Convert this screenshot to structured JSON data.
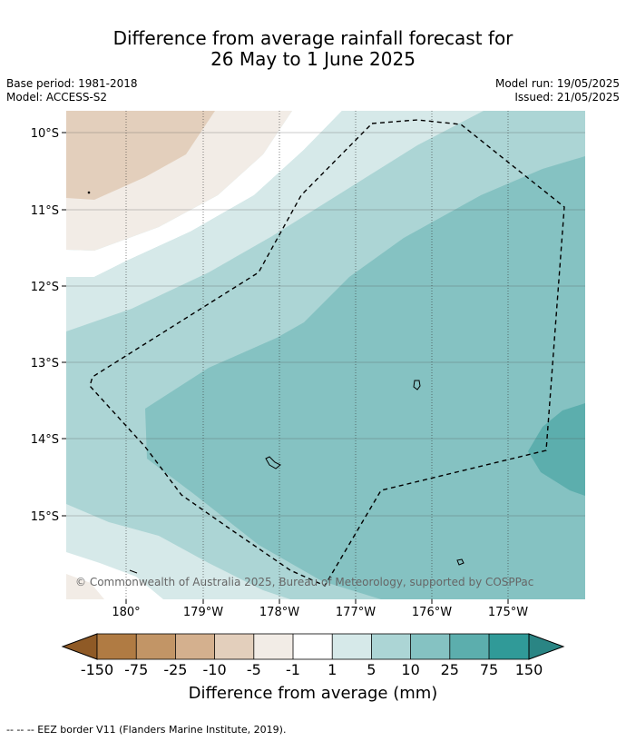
{
  "title_line1": "Difference from average rainfall forecast for",
  "title_line2": "26 May to 1 June 2025",
  "base_period": "Base period: 1981-2018",
  "model": "Model: ACCESS-S2",
  "model_run": "Model run: 19/05/2025",
  "issued": "Issued: 21/05/2025",
  "lat_labels": [
    "10°S",
    "11°S",
    "12°S",
    "13°S",
    "14°S",
    "15°S"
  ],
  "lon_labels": [
    "180°",
    "179°W",
    "178°W",
    "177°W",
    "176°W",
    "175°W"
  ],
  "copyright": "© Commonwealth of Australia 2025, Bureau of Meteorology, supported by COSPPac",
  "colorbar": {
    "labels": [
      "-150",
      "-75",
      "-25",
      "-10",
      "-5",
      "-1",
      "1",
      "5",
      "10",
      "25",
      "75",
      "150"
    ],
    "colors": [
      "#8f5a26",
      "#b07b43",
      "#c29566",
      "#d4b08e",
      "#e3cfbc",
      "#f2ece6",
      "#ffffff",
      "#d6e9e9",
      "#acd5d5",
      "#85c2c2",
      "#5caead",
      "#309a98",
      "#2a8584"
    ],
    "title": "Difference from average (mm)"
  },
  "footer": "--  --  -- EEZ border V11 (Flanders Marine Institute, 2019)."
}
